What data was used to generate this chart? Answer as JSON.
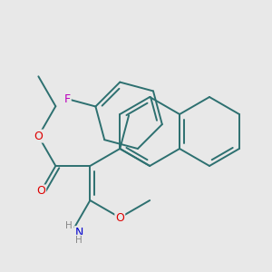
{
  "bg": "#e8e8e8",
  "bond_color": "#2d7070",
  "bond_lw": 1.4,
  "atom_colors": {
    "O": "#dd0000",
    "N": "#0000cc",
    "F": "#bb00bb",
    "C": "#2d7070",
    "H": "#888888"
  },
  "figsize": [
    3.0,
    3.0
  ],
  "dpi": 100
}
